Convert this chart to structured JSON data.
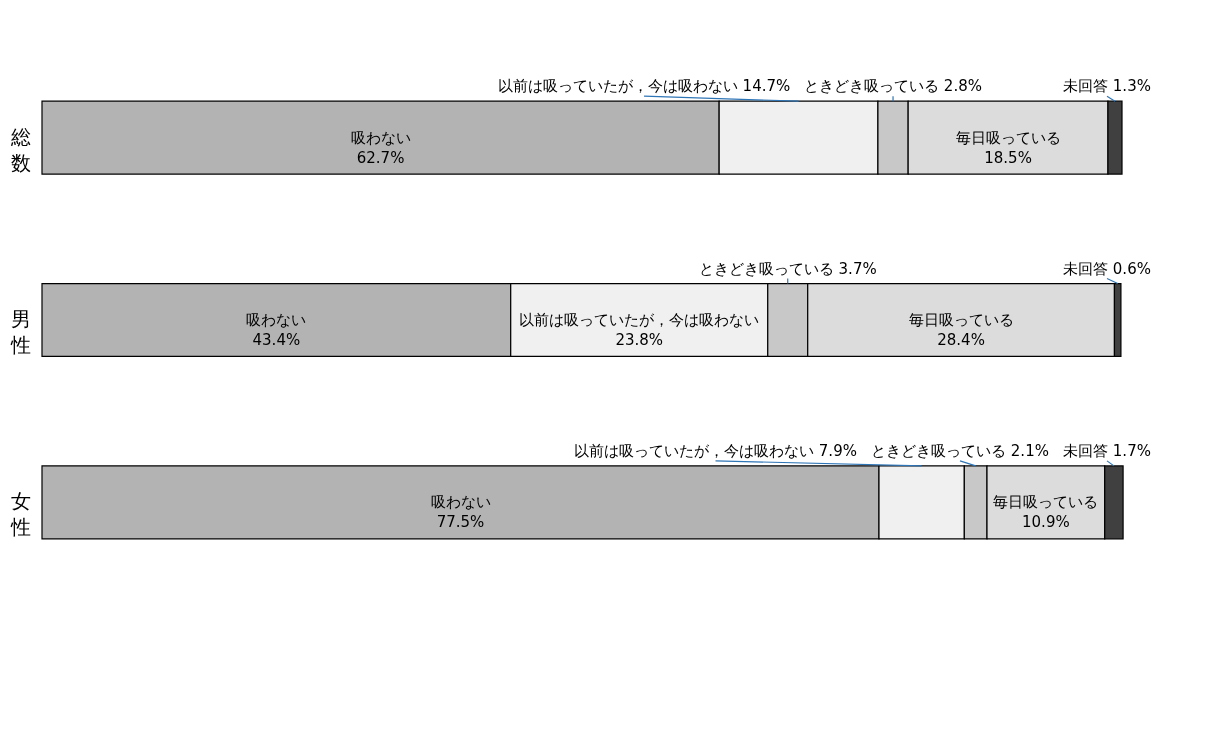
{
  "chart_data": {
    "type": "bar",
    "orientation": "horizontal",
    "stacked": true,
    "categories": [
      "総数",
      "男性",
      "女性"
    ],
    "xlim": [
      0,
      100
    ],
    "tick_labels": "y",
    "legend": false,
    "series": [
      {
        "name": "吸わない",
        "color": "#b3b3b3",
        "values": [
          62.7,
          43.4,
          77.5
        ],
        "value_labels": [
          "62.7%",
          "43.4%",
          "77.5%"
        ]
      },
      {
        "name": "以前は吸っていたが，今は吸わない",
        "color": "#f0f0f0",
        "values": [
          14.7,
          23.8,
          7.9
        ],
        "value_labels": [
          "14.7%",
          "23.8%",
          "7.9%"
        ]
      },
      {
        "name": "ときどき吸っている",
        "color": "#c8c8c8",
        "values": [
          2.8,
          3.7,
          2.1
        ],
        "value_labels": [
          "2.8%",
          "3.7%",
          "2.1%"
        ]
      },
      {
        "name": "毎日吸っている",
        "color": "#dcdcdc",
        "values": [
          18.5,
          28.4,
          10.9
        ],
        "value_labels": [
          "18.5%",
          "28.4%",
          "10.9%"
        ]
      },
      {
        "name": "未回答",
        "color": "#404040",
        "values": [
          1.3,
          0.6,
          1.7
        ],
        "value_labels": [
          "1.3%",
          "0.6%",
          "1.7%"
        ]
      }
    ]
  }
}
